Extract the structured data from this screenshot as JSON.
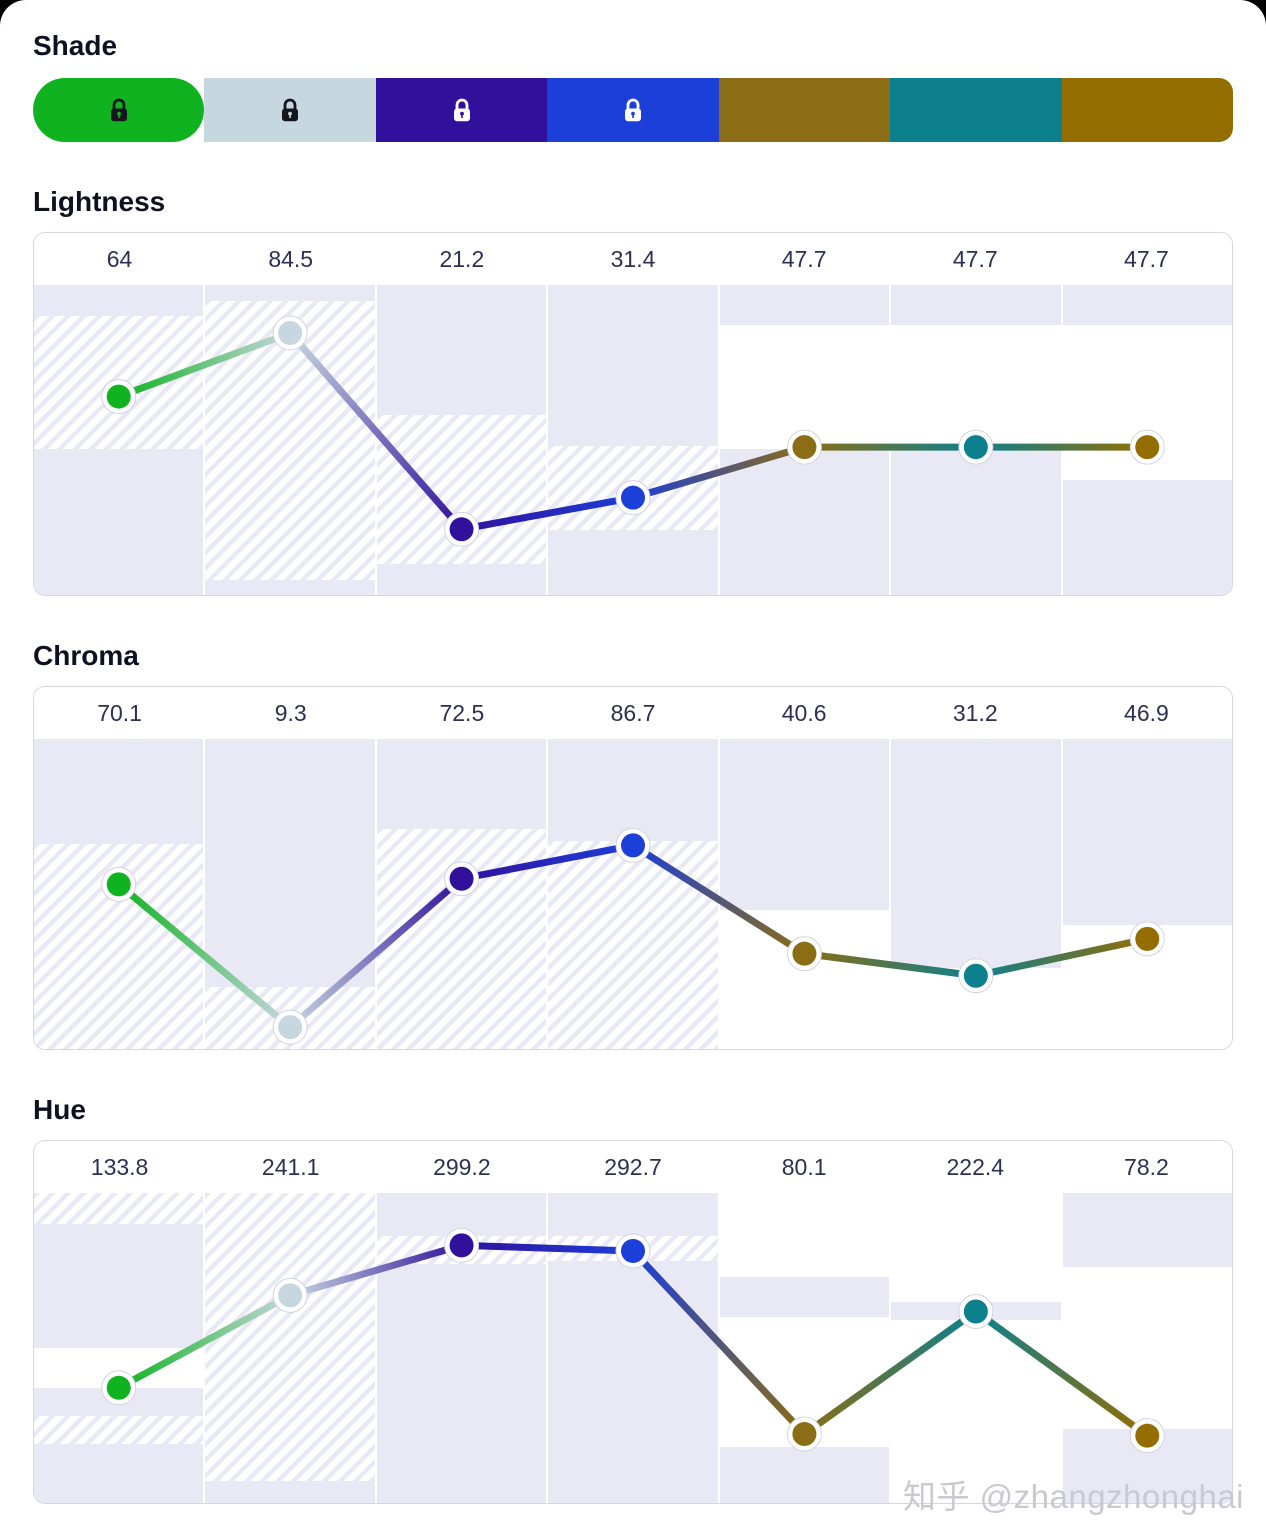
{
  "shade": {
    "title": "Shade",
    "swatches": [
      {
        "name": "shade-1",
        "color": "#0eb31f",
        "locked": true,
        "lock_color": "#15161c",
        "shape": "pill"
      },
      {
        "name": "shade-2",
        "color": "#c7d7df",
        "locked": true,
        "lock_color": "#15161c",
        "shape": "rect"
      },
      {
        "name": "shade-3",
        "color": "#31119c",
        "locked": true,
        "lock_color": "#ffffff",
        "shape": "rect"
      },
      {
        "name": "shade-4",
        "color": "#1c3ed9",
        "locked": true,
        "lock_color": "#ffffff",
        "shape": "rect"
      },
      {
        "name": "shade-5",
        "color": "#8a6d14",
        "locked": false,
        "lock_color": "",
        "shape": "rect"
      },
      {
        "name": "shade-6",
        "color": "#0d808e",
        "locked": false,
        "lock_color": "",
        "shape": "rect"
      },
      {
        "name": "shade-7",
        "color": "#946d00",
        "locked": false,
        "lock_color": "",
        "shape": "rect-end"
      }
    ]
  },
  "chart_data": {
    "type": "line",
    "series_colors": [
      "#0eb31f",
      "#c7d7df",
      "#31119c",
      "#1c3ed9",
      "#8a6d14",
      "#0d808e",
      "#946d00"
    ],
    "charts": [
      {
        "id": "lightness",
        "title": "Lightness",
        "ylim": [
          0,
          100
        ],
        "labels": [
          "64",
          "84.5",
          "21.2",
          "31.4",
          "47.7",
          "47.7",
          "47.7"
        ],
        "values": [
          64,
          84.5,
          21.2,
          31.4,
          47.7,
          47.7,
          47.7
        ],
        "columns": [
          {
            "bands": [
              [
                "lav",
                0.1
              ],
              [
                "hatch",
                0.43
              ],
              [
                "lav",
                0.47
              ]
            ]
          },
          {
            "bands": [
              [
                "lav",
                0.05
              ],
              [
                "hatch",
                0.9
              ],
              [
                "lav",
                0.05
              ]
            ]
          },
          {
            "bands": [
              [
                "lav",
                0.42
              ],
              [
                "hatch",
                0.48
              ],
              [
                "lav",
                0.1
              ]
            ]
          },
          {
            "bands": [
              [
                "lav",
                0.52
              ],
              [
                "hatch",
                0.27
              ],
              [
                "lav",
                0.21
              ]
            ]
          },
          {
            "bands": [
              [
                "lav",
                0.13
              ],
              [
                "white",
                0.4
              ],
              [
                "lav",
                0.47
              ]
            ]
          },
          {
            "bands": [
              [
                "lav",
                0.13
              ],
              [
                "white",
                0.4
              ],
              [
                "lav",
                0.47
              ]
            ]
          },
          {
            "bands": [
              [
                "lav",
                0.13
              ],
              [
                "white",
                0.5
              ],
              [
                "lav",
                0.37
              ]
            ]
          }
        ]
      },
      {
        "id": "chroma",
        "title": "Chroma",
        "ylim": [
          0,
          132
        ],
        "labels": [
          "70.1",
          "9.3",
          "72.5",
          "86.7",
          "40.6",
          "31.2",
          "46.9"
        ],
        "values": [
          70.1,
          9.3,
          72.5,
          86.7,
          40.6,
          31.2,
          46.9
        ],
        "columns": [
          {
            "bands": [
              [
                "lav",
                0.34
              ],
              [
                "hatch",
                0.66
              ]
            ]
          },
          {
            "bands": [
              [
                "lav",
                0.8
              ],
              [
                "hatch",
                0.2
              ]
            ]
          },
          {
            "bands": [
              [
                "lav",
                0.29
              ],
              [
                "hatch",
                0.71
              ]
            ]
          },
          {
            "bands": [
              [
                "lav",
                0.33
              ],
              [
                "hatch",
                0.67
              ]
            ]
          },
          {
            "bands": [
              [
                "lav",
                0.55
              ],
              [
                "white",
                0.45
              ]
            ]
          },
          {
            "bands": [
              [
                "lav",
                0.74
              ],
              [
                "white",
                0.26
              ]
            ]
          },
          {
            "bands": [
              [
                "lav",
                0.6
              ],
              [
                "white",
                0.4
              ]
            ]
          }
        ]
      },
      {
        "id": "hue",
        "title": "Hue",
        "ylim": [
          0,
          360
        ],
        "labels": [
          "133.8",
          "241.1",
          "299.2",
          "292.7",
          "80.1",
          "222.4",
          "78.2"
        ],
        "values": [
          133.8,
          241.1,
          299.2,
          292.7,
          80.1,
          222.4,
          78.2
        ],
        "columns": [
          {
            "bands": [
              [
                "hatch",
                0.1
              ],
              [
                "lav",
                0.4
              ],
              [
                "white",
                0.13
              ],
              [
                "lav",
                0.09
              ],
              [
                "hatch",
                0.09
              ],
              [
                "lav",
                0.19
              ]
            ]
          },
          {
            "bands": [
              [
                "hatch",
                0.93
              ],
              [
                "lav",
                0.07
              ]
            ]
          },
          {
            "bands": [
              [
                "lav",
                0.14
              ],
              [
                "hatch",
                0.09
              ],
              [
                "lav",
                0.77
              ]
            ]
          },
          {
            "bands": [
              [
                "lav",
                0.14
              ],
              [
                "hatch",
                0.08
              ],
              [
                "lav",
                0.78
              ]
            ]
          },
          {
            "bands": [
              [
                "white",
                0.27
              ],
              [
                "lav",
                0.13
              ],
              [
                "white",
                0.42
              ],
              [
                "lav",
                0.18
              ]
            ]
          },
          {
            "bands": [
              [
                "white",
                0.35
              ],
              [
                "lav",
                0.06
              ],
              [
                "white",
                0.59
              ]
            ]
          },
          {
            "bands": [
              [
                "lav",
                0.24
              ],
              [
                "white",
                0.52
              ],
              [
                "lav",
                0.24
              ]
            ]
          }
        ]
      }
    ]
  },
  "watermark": {
    "text": "知乎 @zhangzhonghai"
  }
}
